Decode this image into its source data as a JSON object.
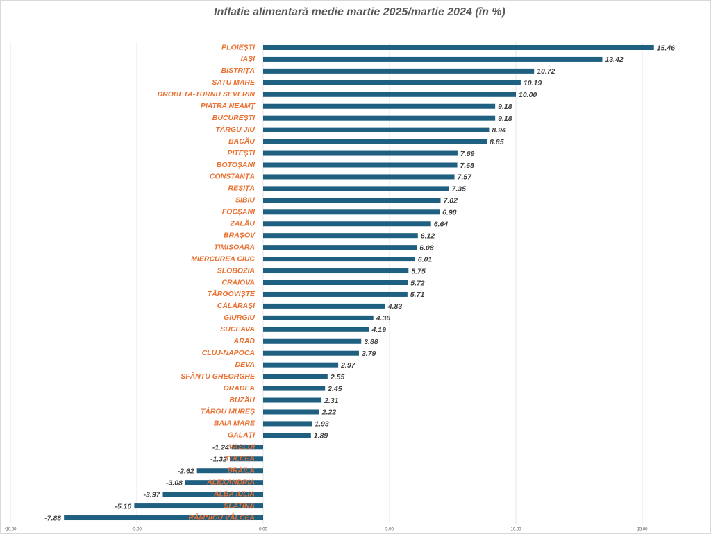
{
  "chart_data": {
    "type": "bar",
    "orientation": "horizontal",
    "title": "Inflatie alimentară medie  martie 2025/martie 2024 (în %)",
    "categories": [
      "PLOIEȘTI",
      "IAȘI",
      "BISTRIȚA",
      "SATU MARE",
      "DROBETA-TURNU SEVERIN",
      "PIATRA NEAMȚ",
      "BUCUREȘTI",
      "TÂRGU JIU",
      "BACĂU",
      "PITEȘTI",
      "BOTOȘANI",
      "CONSTANȚA",
      "REȘIȚA",
      "SIBIU",
      "FOCȘANI",
      "ZALĂU",
      "BRAȘOV",
      "TIMIȘOARA",
      "MIERCUREA CIUC",
      "SLOBOZIA",
      "CRAIOVA",
      "TÂRGOVIȘTE",
      "CĂLĂRAȘI",
      "GIURGIU",
      "SUCEAVA",
      "ARAD",
      "CLUJ-NAPOCA",
      "DEVA",
      "SFÂNTU GHEORGHE",
      "ORADEA",
      "BUZĂU",
      "TÂRGU MUREȘ",
      "BAIA MARE",
      "GALAȚI",
      "VASLUI",
      "TULCEA",
      "BRĂILA",
      "ALEXANDRIA",
      "ALBA IULIA",
      "SLATINA",
      "RÂMNICU VÂLCEA"
    ],
    "values": [
      15.46,
      13.42,
      10.72,
      10.19,
      10.0,
      9.18,
      9.18,
      8.94,
      8.85,
      7.69,
      7.68,
      7.57,
      7.35,
      7.02,
      6.98,
      6.64,
      6.12,
      6.08,
      6.01,
      5.75,
      5.72,
      5.71,
      4.83,
      4.36,
      4.19,
      3.88,
      3.79,
      2.97,
      2.55,
      2.45,
      2.31,
      2.22,
      1.93,
      1.89,
      -1.24,
      -1.32,
      -2.62,
      -3.08,
      -3.97,
      -5.1,
      -7.88
    ],
    "value_labels": [
      "15.46",
      "13.42",
      "10.72",
      "10.19",
      "10.00",
      "9.18",
      "9.18",
      "8.94",
      "8.85",
      "7.69",
      "7.68",
      "7.57",
      "7.35",
      "7.02",
      "6.98",
      "6.64",
      "6.12",
      "6.08",
      "6.01",
      "5.75",
      "5.72",
      "5.71",
      "4.83",
      "4.36",
      "4.19",
      "3.88",
      "3.79",
      "2.97",
      "2.55",
      "2.45",
      "2.31",
      "2.22",
      "1.93",
      "1.89",
      "-1.24",
      "-1.32",
      "-2.62",
      "-3.08",
      "-3.97",
      "-5.10",
      "-7.88"
    ],
    "color": "#1f5f80",
    "xlim": [
      -10,
      17.5
    ],
    "xticks": [
      {
        "value": -10,
        "label": "-10.00"
      },
      {
        "value": -5,
        "label": "-5.00"
      },
      {
        "value": 0,
        "label": "0.00"
      },
      {
        "value": 5,
        "label": "5.00"
      },
      {
        "value": 10,
        "label": "10.00"
      },
      {
        "value": 15,
        "label": "15.00"
      }
    ],
    "grid": true
  }
}
